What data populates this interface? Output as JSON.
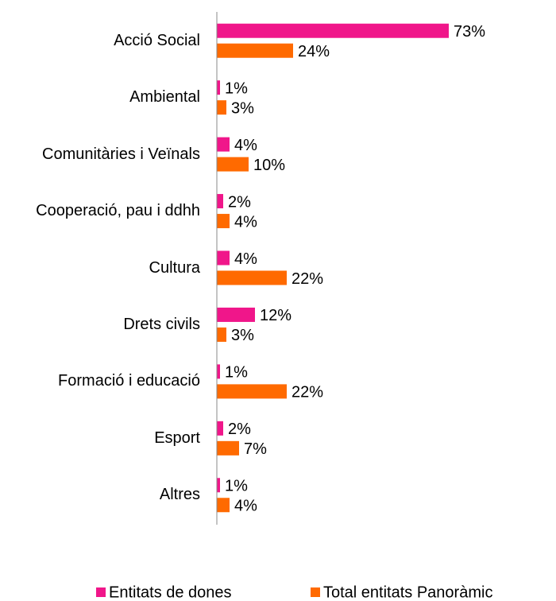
{
  "chart_data": {
    "type": "hbar",
    "categories": [
      "Acció Social",
      "Ambiental",
      "Comunitàries i Veïnals",
      "Cooperació, pau i ddhh",
      "Cultura",
      "Drets civils",
      "Formació i educació",
      "Esport",
      "Altres"
    ],
    "series": [
      {
        "name": "Entitats de dones",
        "color": "#f0168a",
        "values": [
          73,
          1,
          4,
          2,
          4,
          12,
          1,
          2,
          1
        ],
        "value_labels": [
          "73%",
          "1%",
          "4%",
          "2%",
          "4%",
          "12%",
          "1%",
          "2%",
          "1%"
        ]
      },
      {
        "name": "Total entitats Panoràmic",
        "color": "#ff6a00",
        "values": [
          24,
          3,
          10,
          4,
          22,
          3,
          22,
          7,
          4
        ],
        "value_labels": [
          "24%",
          "3%",
          "10%",
          "4%",
          "22%",
          "3%",
          "22%",
          "7%",
          "4%"
        ]
      }
    ],
    "xlim": [
      0,
      100
    ],
    "legend": "bottom"
  }
}
